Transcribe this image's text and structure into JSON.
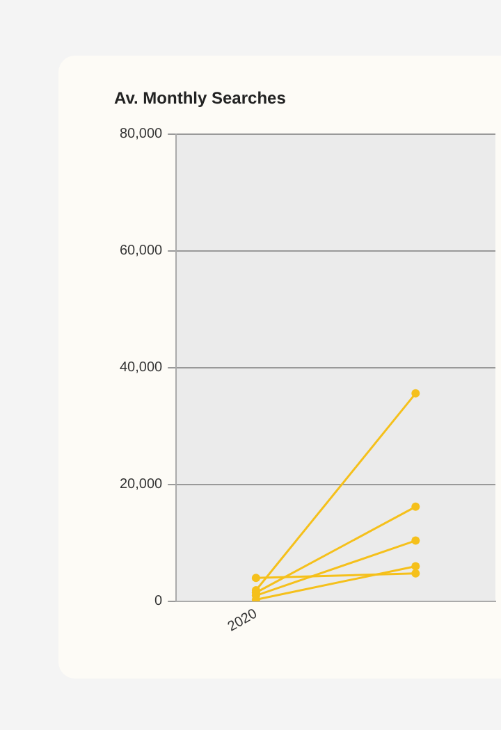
{
  "chart_data": {
    "type": "line",
    "title": "Av. Monthly Searches",
    "categories": [
      "2020",
      null
    ],
    "series": [
      {
        "color": "#f5c01b",
        "values": [
          1900,
          35600
        ]
      },
      {
        "color": "#f5c01b",
        "values": [
          1500,
          16200
        ]
      },
      {
        "color": "#f5c01b",
        "values": [
          1000,
          10400
        ]
      },
      {
        "color": "#f5c01b",
        "values": [
          300,
          6000
        ]
      },
      {
        "color": "#f5c01b",
        "values": [
          4000,
          4800
        ]
      }
    ],
    "ylim": [
      0,
      80000
    ],
    "yticks": [
      {
        "value": 0,
        "label": "0"
      },
      {
        "value": 20000,
        "label": "20,000"
      },
      {
        "value": 40000,
        "label": "40,000"
      },
      {
        "value": 60000,
        "label": "60,000"
      },
      {
        "value": 80000,
        "label": "80,000"
      }
    ],
    "grid": "y",
    "legend": false,
    "marker": "circle"
  }
}
